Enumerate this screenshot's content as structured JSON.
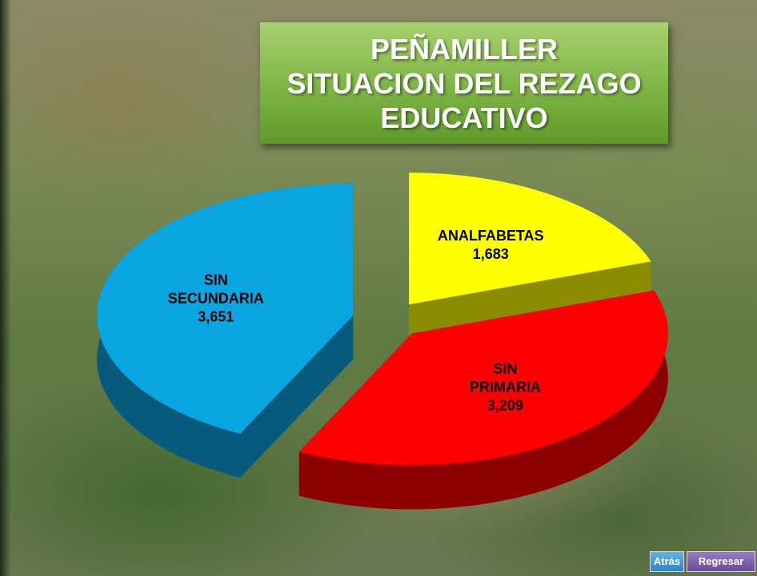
{
  "chart_data": {
    "type": "pie",
    "title": "PEÑAMILLER",
    "subtitle": "SITUACION DEL REZAGO EDUCATIVO",
    "categories": [
      "ANALFABETAS",
      "SIN PRIMARIA",
      "SIN SECUNDARIA"
    ],
    "values": [
      1683,
      3209,
      3651
    ],
    "value_labels": [
      "1,683",
      "3,209",
      "3,651"
    ],
    "colors": [
      "#ffff00",
      "#ff0000",
      "#0aa6e2"
    ]
  },
  "buttons": [
    "Atrás",
    "Regresar"
  ]
}
